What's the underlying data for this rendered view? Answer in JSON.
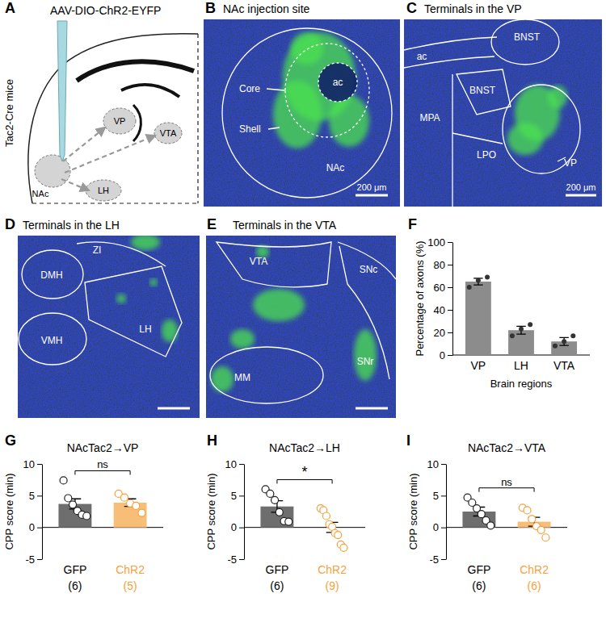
{
  "panels": [
    {
      "letter": "A",
      "title": "AAV-DIO-ChR2-EYFP",
      "side_label": "Tac2-Cre mice",
      "labels": [
        "NAc",
        "VP",
        "VTA",
        "LH"
      ]
    },
    {
      "letter": "B",
      "title": "NAc injection site",
      "labels": [
        "Core",
        "Shell",
        "ac",
        "NAc"
      ],
      "scale_bar": "200 μm"
    },
    {
      "letter": "C",
      "title": "Terminals in the VP",
      "labels": [
        "BNST",
        "ac",
        "BNST",
        "MPA",
        "LPO",
        "VP"
      ],
      "scale_bar": "200 μm"
    },
    {
      "letter": "D",
      "title": "Terminals in the LH",
      "labels": [
        "DMH",
        "ZI",
        "LH",
        "VMH"
      ]
    },
    {
      "letter": "E",
      "title": "Terminals in the VTA",
      "labels": [
        "VTA",
        "SNc",
        "MM",
        "SNr"
      ]
    }
  ],
  "chart_data": [
    {
      "panel": "F",
      "type": "bar",
      "y_label": "Percentage of axons (%)",
      "x_label": "Brain regions",
      "categories": [
        "VP",
        "LH",
        "VTA"
      ],
      "values": [
        65,
        22,
        12
      ],
      "errors": [
        3,
        3.5,
        3.5
      ],
      "points": [
        [
          60,
          66,
          69
        ],
        [
          17,
          23,
          27
        ],
        [
          8,
          12,
          17
        ]
      ],
      "color": "#8c8c8c",
      "marker": "filled",
      "ylim": [
        0,
        100
      ],
      "yticks": [
        0,
        20,
        40,
        60,
        80,
        100
      ]
    },
    {
      "panel": "G",
      "type": "bar",
      "title": "NAcTac2→VP",
      "y_label": "CPP score (min)",
      "categories": [
        "GFP",
        "ChR2"
      ],
      "category_notes": [
        "(6)",
        "(5)"
      ],
      "values": [
        3.7,
        3.9
      ],
      "errors": [
        0.8,
        0.6
      ],
      "points": [
        [
          7.4,
          4.6,
          3.6,
          2.6,
          2.0,
          1.8
        ],
        [
          5.3,
          4.7,
          3.8,
          3.4,
          2.3
        ]
      ],
      "colors": [
        "#6e6e6e",
        "#f5a23c"
      ],
      "marker": "open",
      "ylim": [
        -5,
        10
      ],
      "yticks": [
        -5,
        0,
        5,
        10
      ],
      "annotation": "ns"
    },
    {
      "panel": "H",
      "type": "bar",
      "title": "NAcTac2→LH",
      "y_label": "CPP score (min)",
      "categories": [
        "GFP",
        "ChR2"
      ],
      "category_notes": [
        "(6)",
        "(9)"
      ],
      "values": [
        3.3,
        0.0
      ],
      "errors": [
        0.9,
        0.8
      ],
      "points": [
        [
          6.0,
          5.3,
          4.3,
          2.4,
          1.0,
          0.9
        ],
        [
          3.0,
          2.7,
          1.8,
          0.5,
          0.1,
          -0.9,
          -1.2,
          -2.7,
          -3.2
        ]
      ],
      "colors": [
        "#6e6e6e",
        "#f5a23c"
      ],
      "marker": "open",
      "ylim": [
        -5,
        10
      ],
      "yticks": [
        -5,
        0,
        5,
        10
      ],
      "annotation": "*"
    },
    {
      "panel": "I",
      "type": "bar",
      "title": "NAcTac2→VTA",
      "y_label": "CPP score (min)",
      "categories": [
        "GFP",
        "ChR2"
      ],
      "category_notes": [
        "(6)",
        "(6)"
      ],
      "values": [
        2.5,
        0.9
      ],
      "errors": [
        0.7,
        0.7
      ],
      "points": [
        [
          4.7,
          3.9,
          3.0,
          2.1,
          1.1,
          0.3
        ],
        [
          3.1,
          2.7,
          1.3,
          0.2,
          -0.4,
          -1.6
        ]
      ],
      "colors": [
        "#6e6e6e",
        "#f5a23c"
      ],
      "marker": "open",
      "ylim": [
        -5,
        10
      ],
      "yticks": [
        -5,
        0,
        5,
        10
      ],
      "annotation": "ns"
    }
  ]
}
